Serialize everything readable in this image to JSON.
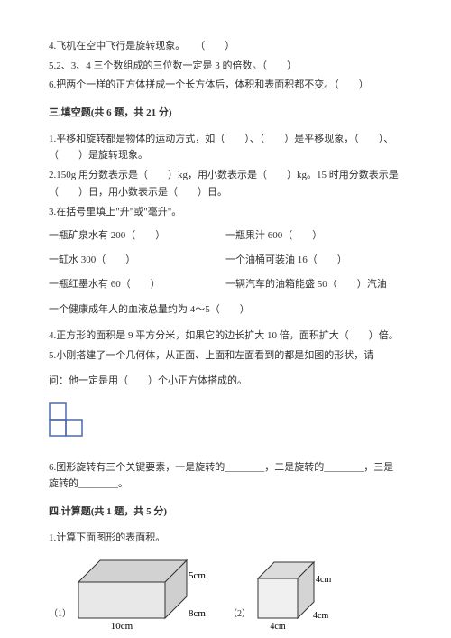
{
  "intro_questions": {
    "q4": "4.飞机在空中飞行是旋转现象。　　（　　）",
    "q5": "5.2、3、4 三个数组成的三位数一定是 3 的倍数。（　　）",
    "q6": "6.把两个一样的正方体拼成一个长方体后，体积和表面积都不变。（　　）"
  },
  "section3": {
    "title": "三.填空题(共 6 题，共 21 分)",
    "q1": "1.平移和旋转都是物体的运动方式，如（　　）、（　　）是平移现象，（　　）、（　　）是旋转现象。",
    "q2": "2.150g 用分数表示是（　　）kg，用小数表示是（　　）kg。15 时用分数表示是（　　）日，用小数表示是（　　）日。",
    "q3": "3.在括号里填上\"升\"或\"毫升\"。",
    "q3_rows": [
      {
        "left": "一瓶矿泉水有 200（　　）",
        "right": "一瓶果汁 600（　　）"
      },
      {
        "left": "一缸水 300（　　）",
        "right": "一个油桶可装油 16（　　）"
      },
      {
        "left": "一瓶红墨水有 60（　　）",
        "right": "一辆汽车的油箱能盛 50（　　）汽油"
      }
    ],
    "q3_last": "一个健康成年人的血液总量约为 4～5（　　）",
    "q4": "4.正方形的面积是 9 平方分米，如果它的边长扩大 10 倍，面积扩大（　　）倍。",
    "q5_a": "5.小刚搭建了一个几何体，从正面、上面和左面看到的都是如图的形状，请",
    "q5_b": "问：他一定是用（　　）个小正方体搭成的。",
    "q6": "6.图形旋转有三个关键要素，一是旋转的________，二是旋转的________，三是旋转的________。",
    "grid": {
      "cell": 18,
      "stroke": "#4a6aa8",
      "stroke_width": 1.5
    }
  },
  "section4": {
    "title": "四.计算题(共 1 题，共 5 分)",
    "q1": "1.计算下面图形的表面积。",
    "shape1_label": "（1）",
    "shape2_label": "（2）",
    "cuboid": {
      "w": 96,
      "h": 40,
      "d": 24,
      "labels": {
        "length": "10cm",
        "width": "8cm",
        "height": "5cm"
      },
      "stroke": "#333333",
      "fill_front": "#e8e8e8",
      "fill_top": "#d2d2d2",
      "fill_side": "#cfcfcf"
    },
    "cube": {
      "s": 44,
      "d": 18,
      "label": "4cm",
      "stroke": "#333333",
      "fill_front": "#f0f0f0",
      "fill_top": "#dcdcdc",
      "fill_side": "#d4d4d4"
    }
  }
}
